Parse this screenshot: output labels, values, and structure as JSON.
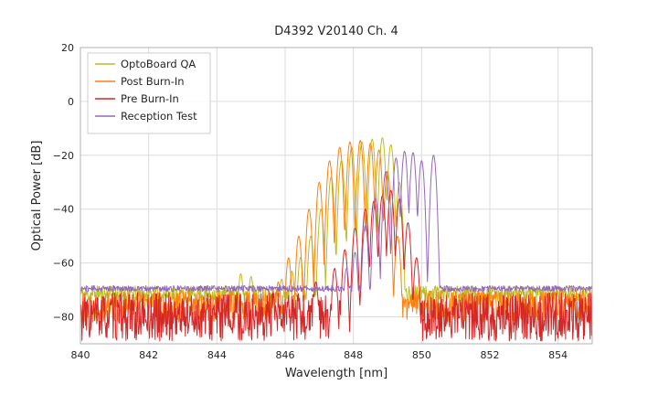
{
  "chart_data": {
    "type": "line",
    "title": "D4392 V20140 Ch. 4",
    "xlabel": "Wavelength [nm]",
    "ylabel": "Optical Power [dB]",
    "xlim": [
      840,
      855
    ],
    "ylim": [
      -90,
      20
    ],
    "xticks": [
      840,
      842,
      844,
      846,
      848,
      850,
      852,
      854
    ],
    "yticks": [
      20,
      0,
      -20,
      -40,
      -60,
      -80
    ],
    "grid": true,
    "legend_position": "upper left",
    "colors": {
      "grid": "#dcdcdc",
      "frame": "#b0b0b0",
      "background": "#ffffff"
    },
    "series": [
      {
        "name": "OptoBoard QA",
        "color": "#bcbd22",
        "noise": {
          "mean": -71.5,
          "amp": 3.0,
          "seed": 11
        },
        "mode_spacing": 0.3,
        "peaks": [
          [
            844.7,
            -64
          ],
          [
            845.0,
            -65
          ],
          [
            845.9,
            -66
          ],
          [
            846.2,
            -63
          ],
          [
            846.45,
            -58
          ],
          [
            846.75,
            -50
          ],
          [
            847.05,
            -40
          ],
          [
            847.35,
            -28
          ],
          [
            847.65,
            -22
          ],
          [
            847.95,
            -17
          ],
          [
            848.25,
            -15
          ],
          [
            848.55,
            -14
          ],
          [
            848.85,
            -13.5
          ],
          [
            849.1,
            -16
          ],
          [
            849.35,
            -30
          ]
        ]
      },
      {
        "name": "Post Burn-In",
        "color": "#ff7f0e",
        "noise": {
          "mean": -76.0,
          "amp": 6.0,
          "seed": 22
        },
        "mode_spacing": 0.3,
        "peaks": [
          [
            845.8,
            -67
          ],
          [
            846.1,
            -58
          ],
          [
            846.4,
            -50
          ],
          [
            846.7,
            -40
          ],
          [
            847.0,
            -30
          ],
          [
            847.3,
            -22
          ],
          [
            847.6,
            -17
          ],
          [
            847.9,
            -15
          ],
          [
            848.2,
            -14.5
          ],
          [
            848.5,
            -15.5
          ],
          [
            848.75,
            -18
          ],
          [
            849.0,
            -26
          ],
          [
            849.3,
            -50
          ]
        ]
      },
      {
        "name": "Pre Burn-In",
        "color": "#d62728",
        "noise": {
          "mean": -80.0,
          "amp": 9.0,
          "seed": 33
        },
        "mode_spacing": 0.3,
        "peaks": [
          [
            846.9,
            -67
          ],
          [
            847.45,
            -62
          ],
          [
            847.75,
            -55
          ],
          [
            848.05,
            -47
          ],
          [
            848.35,
            -40
          ],
          [
            848.6,
            -37
          ],
          [
            848.85,
            -35
          ],
          [
            849.1,
            -33
          ],
          [
            849.35,
            -36
          ],
          [
            849.6,
            -45
          ],
          [
            849.85,
            -58
          ]
        ]
      },
      {
        "name": "Reception Test",
        "color": "#9467bd",
        "noise": {
          "mean": -69.5,
          "amp": 1.1,
          "seed": 44
        },
        "mode_spacing": 0.3,
        "peaks": [
          [
            847.8,
            -62
          ],
          [
            848.05,
            -56
          ],
          [
            848.35,
            -46
          ],
          [
            848.65,
            -36
          ],
          [
            848.95,
            -26
          ],
          [
            849.25,
            -21
          ],
          [
            849.5,
            -18.5
          ],
          [
            849.75,
            -19
          ],
          [
            850.0,
            -22
          ],
          [
            850.35,
            -20
          ]
        ]
      }
    ]
  }
}
